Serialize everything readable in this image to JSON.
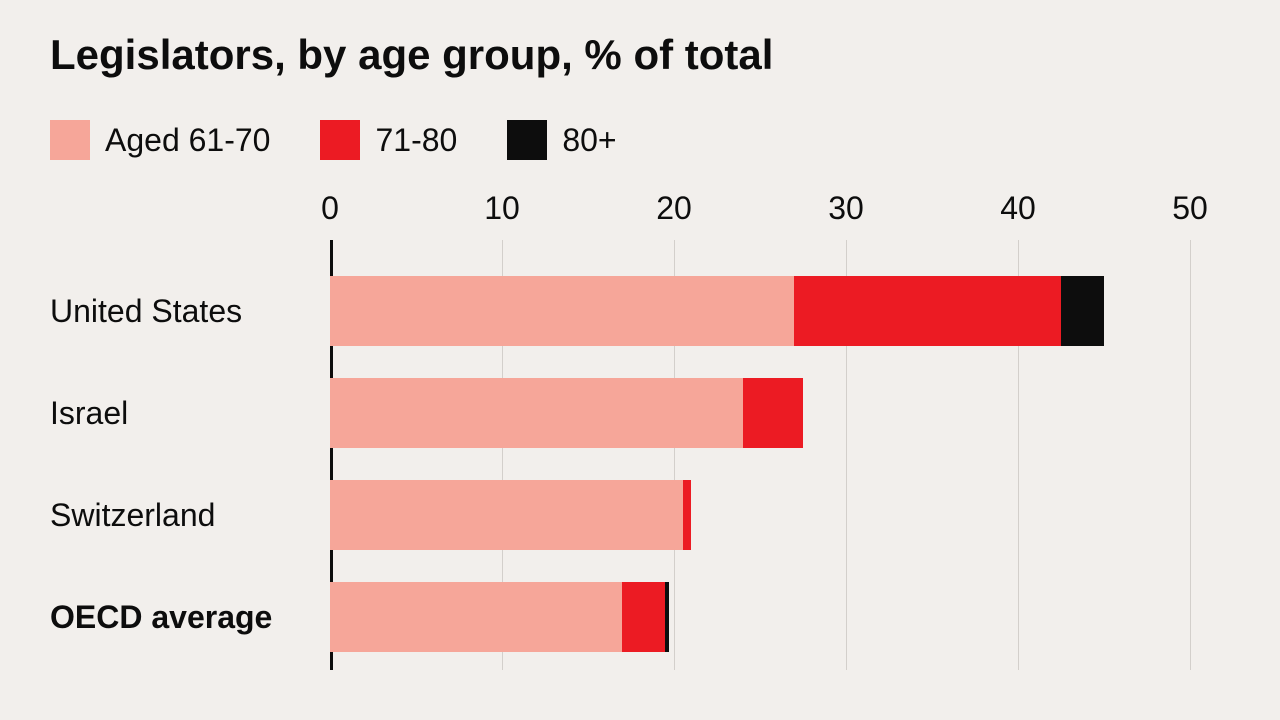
{
  "chart": {
    "type": "stacked-bar-horizontal",
    "title": "Legislators, by age group, % of total",
    "background_color": "#f2efec",
    "text_color": "#0d0d0d",
    "title_fontsize": 42,
    "label_fontsize": 32,
    "axis_fontsize": 32,
    "grid_color": "#d3cfcb",
    "axis_line_color": "#0d0d0d",
    "xlim": [
      0,
      50
    ],
    "xtick_step": 10,
    "xticks": [
      0,
      10,
      20,
      30,
      40,
      50
    ],
    "bar_height_ratio": 0.68,
    "legend": [
      {
        "label": "Aged 61-70",
        "color": "#f6a699"
      },
      {
        "label": "71-80",
        "color": "#ec1b23"
      },
      {
        "label": "80+",
        "color": "#0d0d0d"
      }
    ],
    "series": [
      {
        "label": "United States",
        "bold": false,
        "segments": [
          {
            "value": 27.0,
            "color": "#f6a699"
          },
          {
            "value": 15.5,
            "color": "#ec1b23"
          },
          {
            "value": 2.5,
            "color": "#0d0d0d"
          }
        ]
      },
      {
        "label": "Israel",
        "bold": false,
        "segments": [
          {
            "value": 24.0,
            "color": "#f6a699"
          },
          {
            "value": 3.5,
            "color": "#ec1b23"
          },
          {
            "value": 0,
            "color": "#0d0d0d"
          }
        ]
      },
      {
        "label": "Switzerland",
        "bold": false,
        "segments": [
          {
            "value": 20.5,
            "color": "#f6a699"
          },
          {
            "value": 0.5,
            "color": "#ec1b23"
          },
          {
            "value": 0,
            "color": "#0d0d0d"
          }
        ]
      },
      {
        "label": "OECD average",
        "bold": true,
        "segments": [
          {
            "value": 17.0,
            "color": "#f6a699"
          },
          {
            "value": 2.5,
            "color": "#ec1b23"
          },
          {
            "value": 0.2,
            "color": "#0d0d0d"
          }
        ]
      }
    ]
  }
}
